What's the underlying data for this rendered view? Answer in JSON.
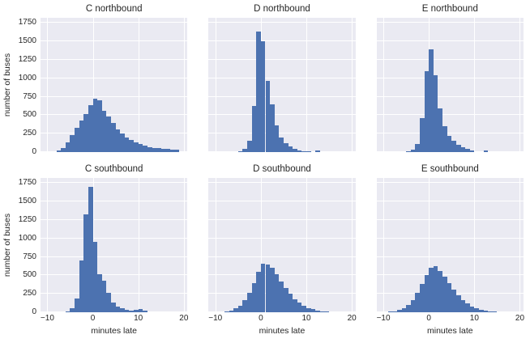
{
  "figure": {
    "background": "#ffffff",
    "panel_background": "#eaeaf2",
    "grid_color": "#ffffff",
    "bar_color": "#4c72b0"
  },
  "axes": {
    "xlabel": "minutes late",
    "ylabel": "number of buses",
    "xlim": [
      -11.5,
      20.8
    ],
    "ylim": [
      0,
      1820
    ],
    "xticks": [
      -10,
      0,
      10,
      20
    ],
    "xtick_labels": [
      "−10",
      "0",
      "10",
      "20"
    ],
    "yticks": [
      0,
      250,
      500,
      750,
      1000,
      1250,
      1500,
      1750
    ],
    "ytick_labels": [
      "0",
      "250",
      "500",
      "750",
      "1000",
      "1250",
      "1500",
      "1750"
    ]
  },
  "chart_data": [
    {
      "type": "bar",
      "subtype": "histogram",
      "title": "C northbound",
      "bin_start": -8,
      "bin_width": 1,
      "values": [
        20,
        60,
        130,
        230,
        330,
        430,
        520,
        640,
        720,
        700,
        560,
        480,
        400,
        310,
        250,
        200,
        160,
        130,
        105,
        85,
        70,
        60,
        50,
        45,
        40,
        35,
        30
      ]
    },
    {
      "type": "bar",
      "subtype": "histogram",
      "title": "D northbound",
      "bin_start": -5,
      "bin_width": 1,
      "values": [
        10,
        40,
        150,
        620,
        1630,
        1500,
        960,
        650,
        360,
        200,
        120,
        75,
        45,
        25,
        15,
        10,
        0,
        25
      ]
    },
    {
      "type": "bar",
      "subtype": "histogram",
      "title": "E northbound",
      "bin_start": -5,
      "bin_width": 1,
      "values": [
        10,
        35,
        110,
        460,
        1100,
        1390,
        1040,
        590,
        350,
        220,
        150,
        100,
        65,
        40,
        25,
        0,
        0,
        25
      ]
    },
    {
      "type": "bar",
      "subtype": "histogram",
      "title": "C southbound",
      "bin_start": -6,
      "bin_width": 1,
      "values": [
        15,
        50,
        190,
        700,
        1330,
        1700,
        950,
        520,
        430,
        260,
        130,
        80,
        50,
        35,
        25,
        30,
        45,
        20
      ]
    },
    {
      "type": "bar",
      "subtype": "histogram",
      "title": "D southbound",
      "bin_start": -8,
      "bin_width": 1,
      "values": [
        10,
        25,
        50,
        90,
        160,
        260,
        400,
        550,
        660,
        650,
        600,
        510,
        420,
        330,
        250,
        180,
        130,
        90,
        60,
        40,
        25,
        15,
        10
      ]
    },
    {
      "type": "bar",
      "subtype": "histogram",
      "title": "E southbound",
      "bin_start": -9,
      "bin_width": 1,
      "values": [
        8,
        15,
        30,
        60,
        100,
        170,
        260,
        380,
        500,
        600,
        630,
        560,
        480,
        400,
        310,
        230,
        170,
        120,
        80,
        50,
        30,
        20,
        12,
        8
      ]
    }
  ]
}
